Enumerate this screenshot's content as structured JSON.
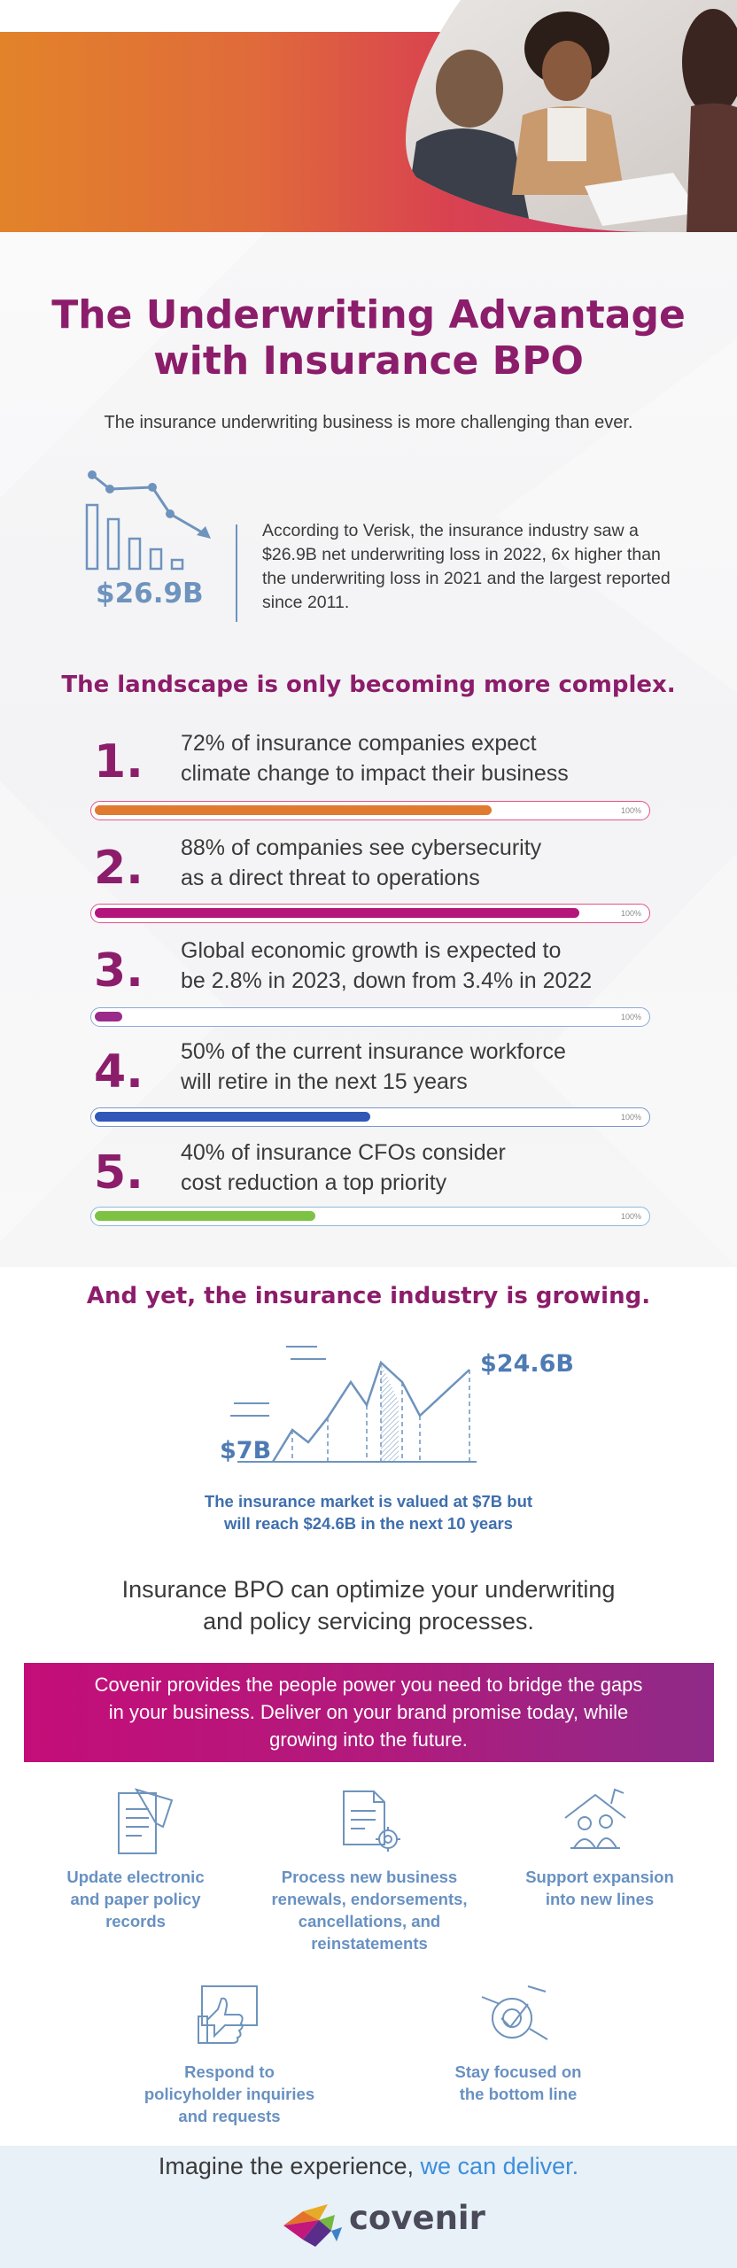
{
  "title_lines": [
    "The Underwriting Advantage",
    "with Insurance BPO"
  ],
  "subtitle": "The insurance underwriting business is more challenging than ever.",
  "loss": {
    "value": "$26.9B",
    "text": "According to Verisk, the insurance industry saw a $26.9B net underwriting loss in 2022, 6x higher than the underwriting loss in 2021 and the largest reported since 2011."
  },
  "landscape_heading": "The landscape is only becoming more complex.",
  "stats": [
    {
      "number": "1.",
      "line1": "72% of insurance companies expect",
      "line2": "climate change to impact their business",
      "percent": 72,
      "max_label": "100%",
      "color": "#e07a30"
    },
    {
      "number": "2.",
      "line1": "88% of companies see cybersecurity",
      "line2": "as a direct threat to operations",
      "percent": 88,
      "max_label": "100%",
      "color": "#b3157a"
    },
    {
      "number": "3.",
      "line1": "Global economic growth is expected to",
      "line2": "be 2.8% in 2023, down from 3.4% in 2022",
      "percent": 2.8,
      "max_label": "100%",
      "color": "#9b2a8a"
    },
    {
      "number": "4.",
      "line1": "50% of the current insurance workforce",
      "line2": "will retire in the next 15 years",
      "percent": 50,
      "max_label": "100%",
      "color": "#3157b8"
    },
    {
      "number": "5.",
      "line1": "40% of insurance CFOs consider",
      "line2": "cost reduction a top priority",
      "percent": 40,
      "max_label": "100%",
      "color": "#7dc243"
    }
  ],
  "growing_heading": "And yet, the insurance industry is growing.",
  "growth": {
    "start_label": "$7B",
    "end_label": "$24.6B",
    "caption_lines": [
      "The insurance market is valued at $7B but",
      "will reach $24.6B in the next 10 years"
    ]
  },
  "bpo_lines": [
    "Insurance BPO can optimize your underwriting",
    "and policy servicing processes."
  ],
  "banner_lines": [
    "Covenir provides the people power you need to bridge the gaps",
    "in your business. Deliver on your brand promise today, while",
    "growing into the future."
  ],
  "services": [
    {
      "icon": "document-icon",
      "lines": [
        "Update electronic",
        "and paper policy",
        "records"
      ]
    },
    {
      "icon": "document-gear-icon",
      "lines": [
        "Process new business",
        "renewals, endorsements,",
        "cancellations, and",
        "reinstatements"
      ]
    },
    {
      "icon": "house-people-icon",
      "lines": [
        "Support expansion",
        "into new lines"
      ]
    },
    {
      "icon": "thumbs-up-chat-icon",
      "lines": [
        "Respond to",
        "policyholder inquiries",
        "and requests"
      ]
    },
    {
      "icon": "target-check-icon",
      "lines": [
        "Stay focused on",
        "the bottom line"
      ]
    }
  ],
  "footer": {
    "tagline_start": "Imagine the experience, ",
    "tagline_accent": "we can deliver.",
    "logo_text": "covenir"
  },
  "colors": {
    "brand_purple": "#8c1d6b",
    "brand_blue": "#6891c2",
    "banner": "#b21a7c"
  }
}
